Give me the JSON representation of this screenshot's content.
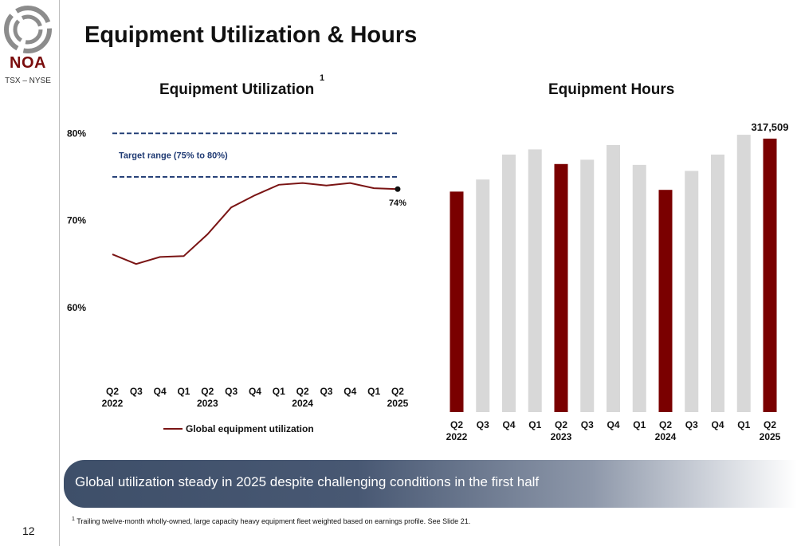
{
  "page": {
    "title": "Equipment Utilization & Hours",
    "page_number": "12",
    "logo": {
      "name": "NOA",
      "exchange": "TSX – NYSE"
    },
    "banner": "Global utilization steady in 2025 despite challenging conditions in the first half",
    "footnote_marker": "1",
    "footnote": "Trailing twelve-month wholly-owned, large capacity heavy equipment fleet weighted based on earnings profile. See Slide 21."
  },
  "colors": {
    "accent": "#7a0000",
    "line": "#7a1414",
    "grey_bar": "#d8d8d8",
    "target": "#1f3a73"
  },
  "chart_data": [
    {
      "type": "line",
      "title": "Equipment Utilization",
      "title_superscript": "1",
      "x": [
        "Q2",
        "Q3",
        "Q4",
        "Q1",
        "Q2",
        "Q3",
        "Q4",
        "Q1",
        "Q2",
        "Q3",
        "Q4",
        "Q1",
        "Q2"
      ],
      "year_labels": [
        "2022",
        "",
        "",
        "",
        "2023",
        "",
        "",
        "",
        "2024",
        "",
        "",
        "",
        "2025"
      ],
      "series": [
        {
          "name": "Global equipment utilization",
          "values": [
            66.1,
            65.0,
            65.8,
            65.9,
            68.4,
            71.5,
            72.9,
            74.1,
            74.3,
            74.0,
            74.3,
            73.7,
            73.6
          ]
        }
      ],
      "ylim": [
        50,
        82.5
      ],
      "yticks": [
        "60%",
        "70%",
        "80%"
      ],
      "ytick_values": [
        60,
        70,
        80
      ],
      "target_range": {
        "low": 75,
        "high": 80,
        "label": "Target range (75% to 80%)"
      },
      "end_label": "74%",
      "grid": false,
      "legend_position": "bottom"
    },
    {
      "type": "bar",
      "title": "Equipment Hours",
      "categories": [
        "Q2",
        "Q3",
        "Q4",
        "Q1",
        "Q2",
        "Q3",
        "Q4",
        "Q1",
        "Q2",
        "Q3",
        "Q4",
        "Q1",
        "Q2"
      ],
      "year_labels": [
        "2022",
        "",
        "",
        "",
        "2023",
        "",
        "",
        "",
        "2024",
        "",
        "",
        "",
        "2025"
      ],
      "values": [
        256000,
        270000,
        299000,
        305000,
        288000,
        293000,
        310000,
        287000,
        258000,
        280000,
        299000,
        322000,
        317509
      ],
      "highlighted": [
        true,
        false,
        false,
        false,
        true,
        false,
        false,
        false,
        true,
        false,
        false,
        false,
        true
      ],
      "top_label": "317,509",
      "ylim": [
        0,
        335000
      ],
      "axis_visible": false,
      "grid": false
    }
  ]
}
